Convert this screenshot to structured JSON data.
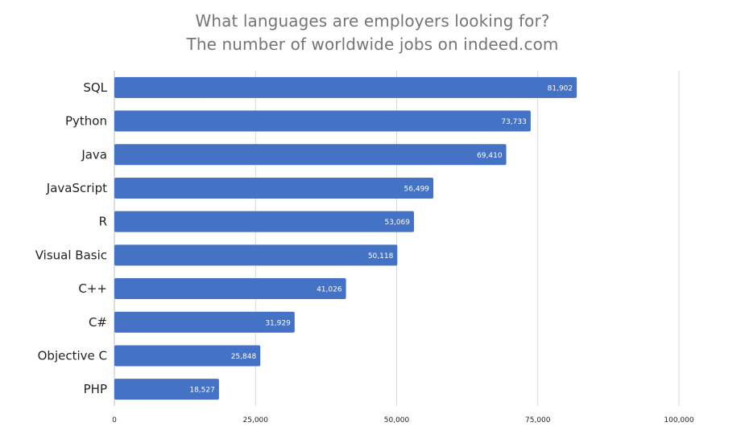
{
  "chart_data": {
    "type": "bar",
    "orientation": "horizontal",
    "title": "What languages are employers looking for?",
    "subtitle": "The number of worldwide jobs on indeed.com",
    "categories": [
      "SQL",
      "Python",
      "Java",
      "JavaScript",
      "R",
      "Visual Basic",
      "C++",
      "C#",
      "Objective C",
      "PHP"
    ],
    "values": [
      81902,
      73733,
      69410,
      56499,
      53069,
      50118,
      41026,
      31929,
      25848,
      18527
    ],
    "value_labels": [
      "81,902",
      "73,733",
      "69,410",
      "56,499",
      "53,069",
      "50,118",
      "41,026",
      "31,929",
      "25,848",
      "18,527"
    ],
    "xlim": [
      0,
      100000
    ],
    "xticks": [
      0,
      25000,
      50000,
      75000,
      100000
    ],
    "xtick_labels": [
      "0",
      "25,000",
      "50,000",
      "75,000",
      "100,000"
    ],
    "xlabel": "",
    "ylabel": "",
    "grid": true,
    "legend": "none",
    "colors": {
      "bar": "#4472c4",
      "grid": "#d9d9d9",
      "title": "#757575"
    }
  }
}
